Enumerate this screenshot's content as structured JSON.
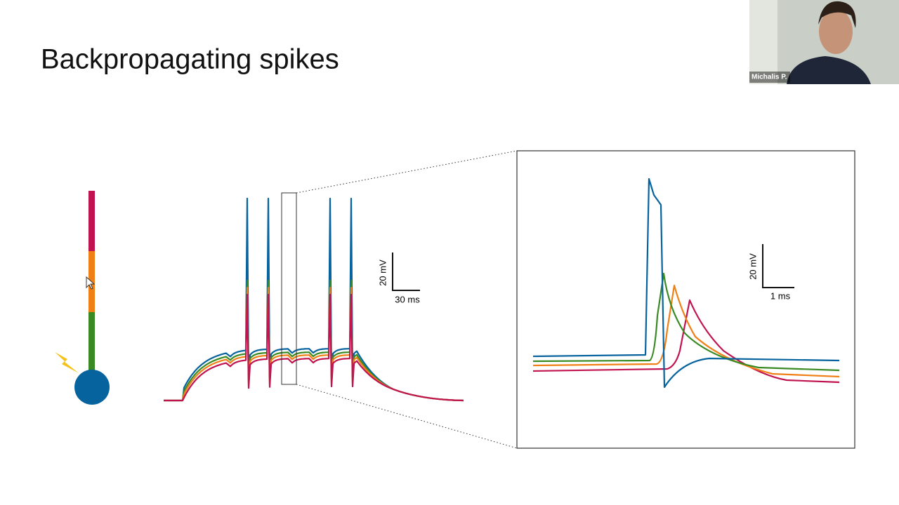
{
  "slide": {
    "title": "Backpropagating spikes",
    "scale_bar_train": {
      "voltage": "20 mV",
      "time": "30 ms"
    },
    "scale_bar_zoom": {
      "voltage": "20 mV",
      "time": "1 ms"
    }
  },
  "video": {
    "participant": "Michalis P."
  }
}
